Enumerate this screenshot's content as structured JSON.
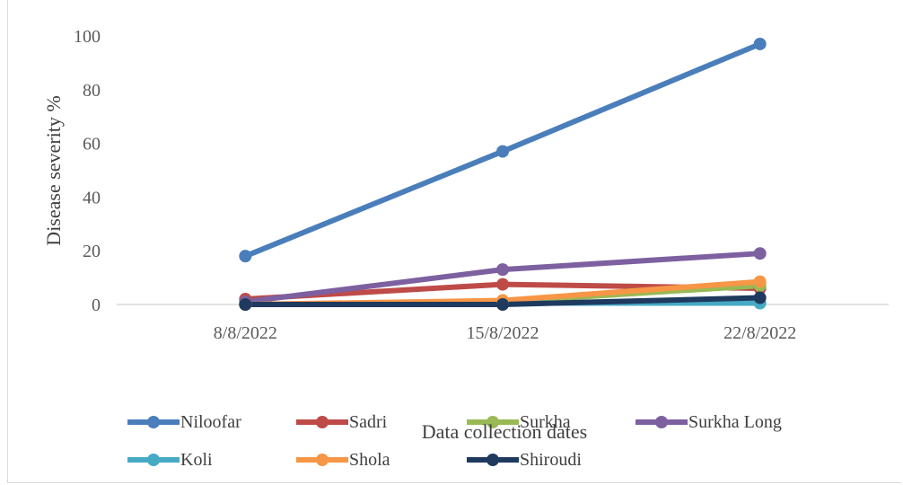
{
  "chart_data": {
    "type": "line",
    "title": "",
    "xlabel": "Data collection dates",
    "ylabel": "Disease severity %",
    "categories": [
      "8/8/2022",
      "15/8/2022",
      "22/8/2022"
    ],
    "ylim": [
      0,
      100
    ],
    "yticks": [
      0,
      20,
      40,
      60,
      80,
      100
    ],
    "grid": false,
    "legend_position": "bottom",
    "series": [
      {
        "name": "Niloofar",
        "values": [
          18,
          57,
          97
        ],
        "color": "#4a7ebb"
      },
      {
        "name": "Sadri",
        "values": [
          2,
          7.5,
          6
        ],
        "color": "#be4b48"
      },
      {
        "name": "Surkha",
        "values": [
          0,
          1,
          7
        ],
        "color": "#98b954"
      },
      {
        "name": "Surkha Long",
        "values": [
          1,
          13,
          19
        ],
        "color": "#7d60a0"
      },
      {
        "name": "Koli",
        "values": [
          0,
          0.5,
          0.5
        ],
        "color": "#46aac5"
      },
      {
        "name": "Shola",
        "values": [
          0,
          1.5,
          8.5
        ],
        "color": "#f79646"
      },
      {
        "name": "Shiroudi",
        "values": [
          0,
          0,
          2.5
        ],
        "color": "#1f3a5f"
      }
    ]
  }
}
